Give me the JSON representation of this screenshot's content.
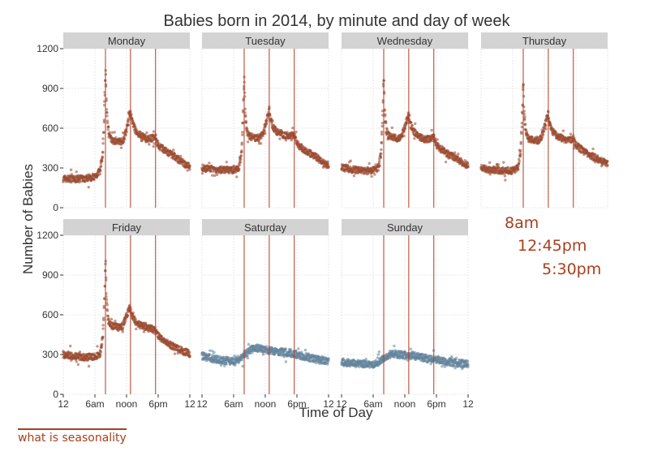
{
  "colors": {
    "weekday_points": "#a8401e",
    "weekend_points": "#5f88a8",
    "ref_lines": "#b03a22",
    "strip_bg": "#d3d3d3",
    "grid": "#d9d9d9",
    "legend_text": "#a8401e",
    "link_text": "#a8401e"
  },
  "chart_data": {
    "type": "scatter",
    "title": "Babies born in 2014, by minute and day of week",
    "xlabel": "Time of Day",
    "ylabel": "Number of Babies",
    "x_ticks": [
      "12",
      "6am",
      "noon",
      "6pm",
      "12"
    ],
    "x_tick_hours": [
      0,
      6,
      12,
      18,
      24
    ],
    "y_ticks": [
      "0",
      "300",
      "600",
      "900",
      "1200"
    ],
    "ylim": [
      0,
      1200
    ],
    "xlim_hours": [
      0,
      24
    ],
    "grid": true,
    "reference_lines_hours": [
      8,
      12.75,
      17.5
    ],
    "panels": [
      {
        "name": "Monday",
        "group": "weekday",
        "reference_lines": true,
        "profile": [
          [
            0,
            220
          ],
          [
            2,
            215
          ],
          [
            4,
            220
          ],
          [
            6,
            235
          ],
          [
            7,
            280
          ],
          [
            7.5,
            400
          ],
          [
            7.85,
            820
          ],
          [
            8,
            1060
          ],
          [
            8.2,
            760
          ],
          [
            8.5,
            600
          ],
          [
            9,
            520
          ],
          [
            10,
            505
          ],
          [
            11,
            500
          ],
          [
            11.5,
            520
          ],
          [
            12,
            590
          ],
          [
            12.5,
            700
          ],
          [
            12.75,
            710
          ],
          [
            13,
            660
          ],
          [
            13.5,
            600
          ],
          [
            14,
            560
          ],
          [
            15,
            540
          ],
          [
            16,
            520
          ],
          [
            17,
            525
          ],
          [
            17.5,
            540
          ],
          [
            18,
            470
          ],
          [
            19,
            440
          ],
          [
            20,
            410
          ],
          [
            21,
            390
          ],
          [
            22,
            360
          ],
          [
            23,
            330
          ],
          [
            24,
            310
          ]
        ]
      },
      {
        "name": "Tuesday",
        "group": "weekday",
        "reference_lines": true,
        "profile": [
          [
            0,
            300
          ],
          [
            2,
            290
          ],
          [
            4,
            285
          ],
          [
            6,
            285
          ],
          [
            7,
            300
          ],
          [
            7.5,
            420
          ],
          [
            7.85,
            760
          ],
          [
            8,
            1000
          ],
          [
            8.2,
            700
          ],
          [
            8.5,
            580
          ],
          [
            9,
            540
          ],
          [
            10,
            530
          ],
          [
            11,
            525
          ],
          [
            11.5,
            560
          ],
          [
            12,
            620
          ],
          [
            12.5,
            700
          ],
          [
            12.75,
            740
          ],
          [
            13,
            670
          ],
          [
            13.5,
            610
          ],
          [
            14,
            580
          ],
          [
            15,
            560
          ],
          [
            16,
            540
          ],
          [
            17,
            545
          ],
          [
            17.5,
            550
          ],
          [
            18,
            480
          ],
          [
            19,
            450
          ],
          [
            20,
            420
          ],
          [
            21,
            400
          ],
          [
            22,
            370
          ],
          [
            23,
            340
          ],
          [
            24,
            320
          ]
        ]
      },
      {
        "name": "Wednesday",
        "group": "weekday",
        "reference_lines": true,
        "profile": [
          [
            0,
            300
          ],
          [
            2,
            290
          ],
          [
            4,
            280
          ],
          [
            6,
            280
          ],
          [
            7,
            300
          ],
          [
            7.5,
            420
          ],
          [
            7.85,
            760
          ],
          [
            8,
            1000
          ],
          [
            8.2,
            700
          ],
          [
            8.5,
            580
          ],
          [
            9,
            540
          ],
          [
            10,
            530
          ],
          [
            11,
            520
          ],
          [
            11.5,
            550
          ],
          [
            12,
            610
          ],
          [
            12.5,
            680
          ],
          [
            12.75,
            700
          ],
          [
            13,
            640
          ],
          [
            13.5,
            590
          ],
          [
            14,
            560
          ],
          [
            15,
            530
          ],
          [
            16,
            515
          ],
          [
            17,
            520
          ],
          [
            17.5,
            530
          ],
          [
            18,
            470
          ],
          [
            19,
            440
          ],
          [
            20,
            410
          ],
          [
            21,
            390
          ],
          [
            22,
            360
          ],
          [
            23,
            340
          ],
          [
            24,
            320
          ]
        ]
      },
      {
        "name": "Thursday",
        "group": "weekday",
        "reference_lines": true,
        "profile": [
          [
            0,
            300
          ],
          [
            2,
            285
          ],
          [
            4,
            280
          ],
          [
            6,
            280
          ],
          [
            7,
            300
          ],
          [
            7.5,
            420
          ],
          [
            7.85,
            750
          ],
          [
            8,
            960
          ],
          [
            8.2,
            680
          ],
          [
            8.5,
            570
          ],
          [
            9,
            520
          ],
          [
            10,
            510
          ],
          [
            11,
            505
          ],
          [
            11.5,
            540
          ],
          [
            12,
            600
          ],
          [
            12.5,
            680
          ],
          [
            12.75,
            700
          ],
          [
            13,
            630
          ],
          [
            13.5,
            580
          ],
          [
            14,
            555
          ],
          [
            15,
            530
          ],
          [
            16,
            515
          ],
          [
            17,
            515
          ],
          [
            17.5,
            520
          ],
          [
            18,
            470
          ],
          [
            19,
            440
          ],
          [
            20,
            410
          ],
          [
            21,
            390
          ],
          [
            22,
            370
          ],
          [
            23,
            350
          ],
          [
            24,
            330
          ]
        ]
      },
      {
        "name": "Friday",
        "group": "weekday",
        "reference_lines": true,
        "profile": [
          [
            0,
            300
          ],
          [
            2,
            290
          ],
          [
            4,
            280
          ],
          [
            6,
            285
          ],
          [
            7,
            300
          ],
          [
            7.5,
            430
          ],
          [
            7.85,
            780
          ],
          [
            8,
            1030
          ],
          [
            8.2,
            720
          ],
          [
            8.5,
            560
          ],
          [
            9,
            520
          ],
          [
            10,
            510
          ],
          [
            11,
            500
          ],
          [
            11.5,
            540
          ],
          [
            12,
            590
          ],
          [
            12.5,
            650
          ],
          [
            12.75,
            640
          ],
          [
            13,
            590
          ],
          [
            13.5,
            560
          ],
          [
            14,
            540
          ],
          [
            15,
            520
          ],
          [
            16,
            500
          ],
          [
            17,
            490
          ],
          [
            17.5,
            480
          ],
          [
            18,
            440
          ],
          [
            19,
            410
          ],
          [
            20,
            380
          ],
          [
            21,
            360
          ],
          [
            22,
            340
          ],
          [
            23,
            320
          ],
          [
            24,
            310
          ]
        ]
      },
      {
        "name": "Saturday",
        "group": "weekend",
        "reference_lines": true,
        "profile": [
          [
            0,
            290
          ],
          [
            2,
            270
          ],
          [
            4,
            255
          ],
          [
            6,
            250
          ],
          [
            7,
            265
          ],
          [
            8,
            300
          ],
          [
            9,
            330
          ],
          [
            10,
            350
          ],
          [
            11,
            345
          ],
          [
            12,
            340
          ],
          [
            13,
            330
          ],
          [
            14,
            325
          ],
          [
            15,
            320
          ],
          [
            16,
            315
          ],
          [
            17,
            310
          ],
          [
            18,
            300
          ],
          [
            19,
            290
          ],
          [
            20,
            280
          ],
          [
            21,
            270
          ],
          [
            22,
            260
          ],
          [
            23,
            255
          ],
          [
            24,
            250
          ]
        ]
      },
      {
        "name": "Sunday",
        "group": "weekend",
        "reference_lines": true,
        "profile": [
          [
            0,
            240
          ],
          [
            2,
            235
          ],
          [
            4,
            230
          ],
          [
            6,
            230
          ],
          [
            7,
            245
          ],
          [
            8,
            275
          ],
          [
            9,
            300
          ],
          [
            10,
            305
          ],
          [
            11,
            300
          ],
          [
            12,
            295
          ],
          [
            13,
            290
          ],
          [
            14,
            285
          ],
          [
            15,
            280
          ],
          [
            16,
            270
          ],
          [
            17,
            265
          ],
          [
            18,
            260
          ],
          [
            19,
            255
          ],
          [
            20,
            245
          ],
          [
            21,
            240
          ],
          [
            22,
            235
          ],
          [
            23,
            230
          ],
          [
            24,
            230
          ]
        ]
      }
    ]
  },
  "legend": {
    "line1": "8am",
    "line2": "12:45pm",
    "line3": "5:30pm"
  },
  "footer": {
    "link_label": "what is seasonality"
  }
}
